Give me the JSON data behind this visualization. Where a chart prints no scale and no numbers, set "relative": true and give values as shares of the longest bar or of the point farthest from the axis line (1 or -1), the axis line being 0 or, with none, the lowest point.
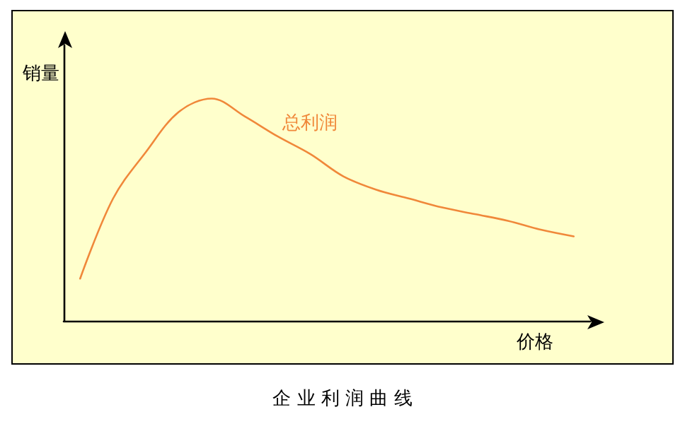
{
  "chart_data": {
    "type": "line",
    "title": "企业利润曲线",
    "xlabel": "价格",
    "ylabel": "销量",
    "relative": true,
    "legend": false,
    "grid": false,
    "marker": "none",
    "line_style": "solid",
    "categories": [
      null,
      null,
      null,
      null,
      null,
      null,
      null,
      null,
      null,
      null,
      null,
      null,
      null,
      null,
      null,
      null
    ],
    "series": [
      {
        "name": "总利润",
        "color": "#f0883a",
        "values": [
          0.19,
          0.55,
          0.76,
          0.94,
          1.0,
          0.92,
          0.83,
          0.75,
          0.65,
          0.59,
          0.55,
          0.51,
          0.48,
          0.45,
          0.41,
          0.38
        ]
      }
    ]
  }
}
